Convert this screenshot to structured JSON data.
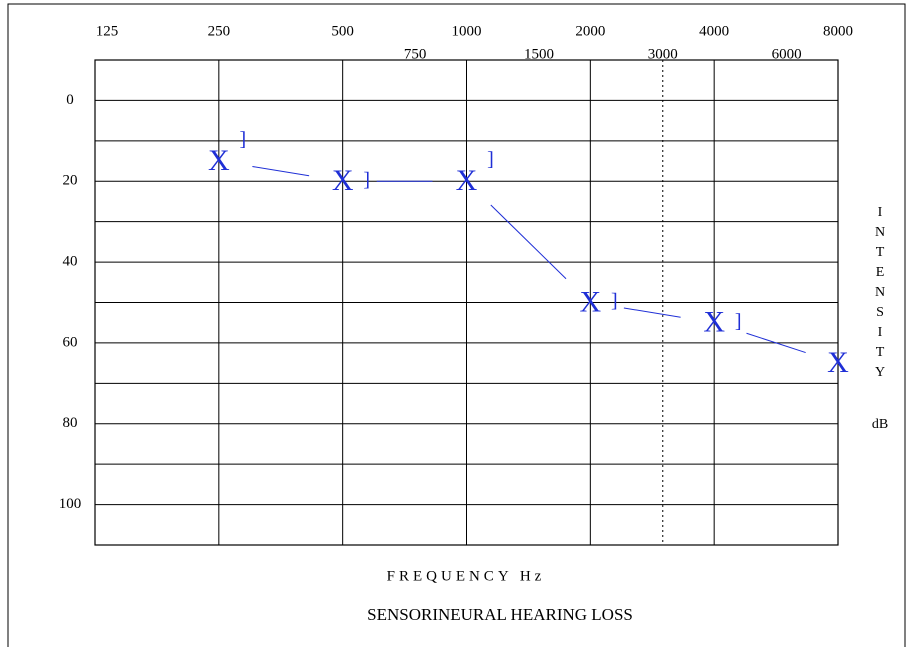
{
  "chart_data": {
    "type": "line",
    "title": "SENSORINEURAL  HEARING LOSS",
    "x_label": "FREQUENCY Hz",
    "y_label": "INTENSITY",
    "y_unit": "dB",
    "x_scale": "log",
    "xlim": [
      125,
      8000
    ],
    "xticks": [
      125,
      250,
      500,
      1000,
      2000,
      4000,
      8000
    ],
    "minor_xticks": [
      750,
      1500,
      3000,
      6000
    ],
    "dotted_xline": 3000,
    "ylim": [
      -10,
      110
    ],
    "y_reversed": true,
    "yticks": [
      0,
      20,
      40,
      60,
      80,
      100
    ],
    "ygrid": [
      0,
      10,
      20,
      30,
      40,
      50,
      60,
      70,
      80,
      90,
      100
    ],
    "thick_yline": 70,
    "x": [
      250,
      500,
      1000,
      2000,
      4000,
      8000
    ],
    "series": [
      {
        "marker": "X",
        "color": "#1f2fd6",
        "values": [
          15,
          20,
          20,
          50,
          55,
          65
        ],
        "connected": true
      },
      {
        "marker": "]",
        "color": "#1f2fd6",
        "values": [
          10,
          20,
          15,
          50,
          55,
          null
        ],
        "connected": false
      }
    ]
  }
}
